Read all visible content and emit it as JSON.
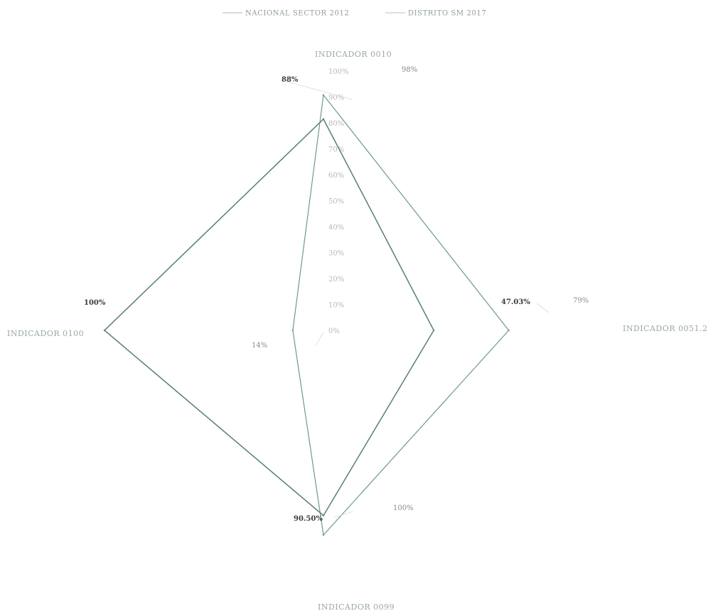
{
  "chart_data": {
    "type": "radar",
    "legend": {
      "position": "top-center",
      "entries": [
        "NACIONAL SECTOR 2012",
        "DISTRITO SM 2017"
      ]
    },
    "axes": [
      "INDICADOR 0010",
      "INDICADOR 0051.2",
      "INDICADOR 0099",
      "INDICADOR 0100"
    ],
    "radial_ticks": [
      "0%",
      "10%",
      "20%",
      "30%",
      "40%",
      "50%",
      "60%",
      "70%",
      "80%",
      "90%",
      "100%"
    ],
    "rlim": [
      0,
      100
    ],
    "series": [
      {
        "name": "NACIONAL SECTOR 2012",
        "color": "#6f9894",
        "values": [
          98,
          79,
          100,
          14
        ],
        "labels": [
          "98%",
          "79%",
          "100%",
          "14%"
        ]
      },
      {
        "name": "DISTRITO SM 2017",
        "color": "#597e78",
        "values": [
          88,
          47.03,
          90.5,
          100
        ],
        "labels": [
          "88%",
          "47.03%",
          "90.50%",
          "100%"
        ]
      }
    ]
  }
}
